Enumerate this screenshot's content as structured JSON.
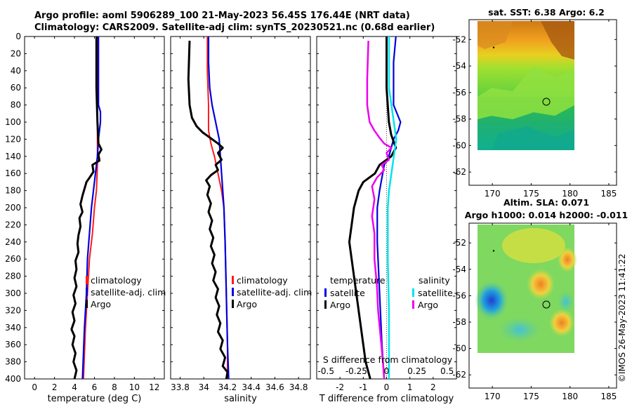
{
  "header": {
    "title_line1": "Argo profile: aoml 5906289_100 21-May-2023 56.45S 176.44E (NRT data)",
    "title_line2": "Climatology: CARS2009. Satellite-adj clim: synTS_20230521.nc (0.68d earlier)"
  },
  "footer": {
    "stamp": "©IMOS 26-May-2023 11:41:22"
  },
  "colors": {
    "climatology": "#ff1a1a",
    "satellite": "#0000dd",
    "argo": "#000000",
    "cyan": "#00e5ee",
    "magenta": "#ee00ee"
  },
  "depth_ticks": [
    0,
    20,
    40,
    60,
    80,
    100,
    120,
    140,
    160,
    180,
    200,
    220,
    240,
    260,
    280,
    300,
    320,
    340,
    360,
    380,
    400
  ],
  "chart_data": [
    {
      "id": "temperature",
      "type": "line",
      "xlabel": "temperature (deg C)",
      "ylabel": "",
      "xlim": [
        -1,
        13
      ],
      "ylim": [
        400,
        0
      ],
      "xticks": [
        0,
        2,
        4,
        6,
        8,
        10,
        12
      ],
      "legend": [
        "climatology",
        "satellite-adj. clim",
        "Argo"
      ],
      "series": [
        {
          "name": "climatology",
          "color": "#ff1a1a",
          "points": [
            [
              6.3,
              0
            ],
            [
              6.3,
              60
            ],
            [
              6.3,
              100
            ],
            [
              6.3,
              150
            ],
            [
              6.2,
              180
            ],
            [
              6.0,
              200
            ],
            [
              5.8,
              230
            ],
            [
              5.5,
              260
            ],
            [
              5.3,
              300
            ],
            [
              5.1,
              340
            ],
            [
              5.0,
              370
            ],
            [
              4.9,
              400
            ]
          ]
        },
        {
          "name": "satellite-adj. clim",
          "color": "#0000dd",
          "points": [
            [
              6.4,
              0
            ],
            [
              6.4,
              40
            ],
            [
              6.4,
              80
            ],
            [
              6.6,
              88
            ],
            [
              6.6,
              100
            ],
            [
              6.4,
              120
            ],
            [
              6.3,
              140
            ],
            [
              6.1,
              160
            ],
            [
              5.9,
              180
            ],
            [
              5.7,
              200
            ],
            [
              5.5,
              230
            ],
            [
              5.3,
              260
            ],
            [
              5.2,
              300
            ],
            [
              5.0,
              340
            ],
            [
              4.9,
              370
            ],
            [
              4.8,
              400
            ]
          ]
        },
        {
          "name": "Argo",
          "color": "#000000",
          "points": [
            [
              6.2,
              0
            ],
            [
              6.2,
              60
            ],
            [
              6.3,
              100
            ],
            [
              6.4,
              125
            ],
            [
              6.7,
              132
            ],
            [
              6.4,
              138
            ],
            [
              6.5,
              145
            ],
            [
              5.8,
              150
            ],
            [
              5.9,
              158
            ],
            [
              5.5,
              165
            ],
            [
              5.2,
              170
            ],
            [
              5.0,
              178
            ],
            [
              4.8,
              186
            ],
            [
              4.6,
              196
            ],
            [
              4.8,
              205
            ],
            [
              4.5,
              212
            ],
            [
              4.6,
              222
            ],
            [
              4.4,
              232
            ],
            [
              4.3,
              242
            ],
            [
              4.4,
              252
            ],
            [
              4.1,
              262
            ],
            [
              4.2,
              272
            ],
            [
              4.0,
              282
            ],
            [
              4.2,
              292
            ],
            [
              3.9,
              302
            ],
            [
              4.1,
              312
            ],
            [
              3.8,
              322
            ],
            [
              4.0,
              332
            ],
            [
              3.7,
              342
            ],
            [
              4.0,
              350
            ],
            [
              3.8,
              360
            ],
            [
              4.1,
              370
            ],
            [
              3.9,
              380
            ],
            [
              4.2,
              390
            ],
            [
              4.0,
              400
            ]
          ]
        }
      ]
    },
    {
      "id": "salinity",
      "type": "line",
      "xlabel": "salinity",
      "ylabel": "",
      "xlim": [
        33.72,
        34.9
      ],
      "ylim": [
        400,
        0
      ],
      "xticks": [
        33.8,
        34,
        34.2,
        34.4,
        34.6,
        34.8
      ],
      "xticklabels": [
        "33.8",
        "34",
        "34.2",
        "34.4",
        "34.6",
        "34.8"
      ],
      "legend": [
        "climatology",
        "satellite-adj. clim",
        "Argo"
      ],
      "series": [
        {
          "name": "climatology",
          "color": "#ff1a1a",
          "points": [
            [
              34.03,
              0
            ],
            [
              34.03,
              40
            ],
            [
              34.04,
              80
            ],
            [
              34.04,
              110
            ],
            [
              34.06,
              125
            ],
            [
              34.09,
              140
            ],
            [
              34.12,
              160
            ],
            [
              34.15,
              180
            ],
            [
              34.17,
              200
            ],
            [
              34.18,
              240
            ],
            [
              34.19,
              300
            ],
            [
              34.2,
              360
            ],
            [
              34.2,
              400
            ]
          ]
        },
        {
          "name": "satellite-adj. clim",
          "color": "#0000dd",
          "points": [
            [
              34.04,
              0
            ],
            [
              34.04,
              30
            ],
            [
              34.05,
              60
            ],
            [
              34.07,
              80
            ],
            [
              34.1,
              100
            ],
            [
              34.13,
              120
            ],
            [
              34.14,
              140
            ],
            [
              34.15,
              160
            ],
            [
              34.16,
              180
            ],
            [
              34.17,
              200
            ],
            [
              34.18,
              240
            ],
            [
              34.19,
              300
            ],
            [
              34.2,
              360
            ],
            [
              34.21,
              400
            ]
          ]
        },
        {
          "name": "Argo",
          "color": "#000000",
          "points": [
            [
              33.88,
              5
            ],
            [
              33.87,
              50
            ],
            [
              33.88,
              80
            ],
            [
              33.9,
              95
            ],
            [
              33.94,
              105
            ],
            [
              33.99,
              112
            ],
            [
              34.05,
              118
            ],
            [
              34.12,
              125
            ],
            [
              34.16,
              130
            ],
            [
              34.12,
              136
            ],
            [
              34.15,
              144
            ],
            [
              34.1,
              150
            ],
            [
              34.12,
              156
            ],
            [
              34.06,
              162
            ],
            [
              34.02,
              168
            ],
            [
              34.05,
              175
            ],
            [
              34.03,
              185
            ],
            [
              34.06,
              195
            ],
            [
              34.04,
              205
            ],
            [
              34.07,
              215
            ],
            [
              34.05,
              225
            ],
            [
              34.08,
              235
            ],
            [
              34.06,
              245
            ],
            [
              34.09,
              255
            ],
            [
              34.07,
              265
            ],
            [
              34.1,
              275
            ],
            [
              34.08,
              285
            ],
            [
              34.12,
              295
            ],
            [
              34.1,
              305
            ],
            [
              34.13,
              315
            ],
            [
              34.11,
              325
            ],
            [
              34.14,
              335
            ],
            [
              34.12,
              345
            ],
            [
              34.16,
              355
            ],
            [
              34.14,
              365
            ],
            [
              34.18,
              375
            ],
            [
              34.16,
              385
            ],
            [
              34.2,
              392
            ],
            [
              34.19,
              400
            ]
          ]
        }
      ]
    },
    {
      "id": "difference",
      "type": "line",
      "xlabel": "T difference from climatology",
      "xlabel_top": "S difference from climatology",
      "xlim": [
        -3,
        3
      ],
      "ylim": [
        400,
        0
      ],
      "xticks": [
        -2,
        -1,
        0,
        1,
        2
      ],
      "top_ticks": [
        -0.5,
        -0.25,
        0,
        0.25,
        0.5
      ],
      "top_ticklabels": [
        "-0.5",
        "-0.25",
        "0",
        "0.25",
        "0.5"
      ],
      "legend_left_title": "temperature",
      "legend_right_title": "salinity",
      "legend": [
        "satellite",
        "Argo"
      ],
      "series": [
        {
          "name": "T satellite",
          "color": "#0000dd",
          "points": [
            [
              0.4,
              0
            ],
            [
              0.3,
              30
            ],
            [
              0.3,
              60
            ],
            [
              0.3,
              80
            ],
            [
              0.6,
              100
            ],
            [
              0.5,
              110
            ],
            [
              0.3,
              120
            ],
            [
              0.1,
              140
            ],
            [
              -0.1,
              150
            ],
            [
              -0.2,
              165
            ],
            [
              -0.3,
              180
            ],
            [
              -0.4,
              200
            ],
            [
              -0.4,
              240
            ],
            [
              -0.3,
              300
            ],
            [
              -0.2,
              360
            ],
            [
              -0.1,
              400
            ]
          ]
        },
        {
          "name": "T Argo",
          "color": "#000000",
          "points": [
            [
              0,
              0
            ],
            [
              0,
              60
            ],
            [
              0.1,
              100
            ],
            [
              0.2,
              115
            ],
            [
              0.4,
              130
            ],
            [
              0.2,
              140
            ],
            [
              -0.3,
              150
            ],
            [
              -0.5,
              160
            ],
            [
              -1.0,
              170
            ],
            [
              -1.2,
              180
            ],
            [
              -1.3,
              190
            ],
            [
              -1.4,
              200
            ],
            [
              -1.5,
              220
            ],
            [
              -1.6,
              240
            ],
            [
              -1.5,
              260
            ],
            [
              -1.4,
              280
            ],
            [
              -1.3,
              300
            ],
            [
              -1.2,
              320
            ],
            [
              -1.1,
              340
            ],
            [
              -1.0,
              360
            ],
            [
              -0.9,
              380
            ],
            [
              -0.7,
              400
            ]
          ]
        },
        {
          "name": "S satellite",
          "color": "#00e5ee",
          "points": [
            [
              0.02,
              0
            ],
            [
              0.02,
              60
            ],
            [
              0.06,
              100
            ],
            [
              0.08,
              120
            ],
            [
              0.06,
              140
            ],
            [
              0.04,
              160
            ],
            [
              0.02,
              180
            ],
            [
              0.01,
              200
            ],
            [
              0.01,
              260
            ],
            [
              0.02,
              320
            ],
            [
              0.02,
              400
            ]
          ]
        },
        {
          "name": "S Argo",
          "color": "#ee00ee",
          "points": [
            [
              -0.15,
              5
            ],
            [
              -0.16,
              50
            ],
            [
              -0.16,
              80
            ],
            [
              -0.14,
              100
            ],
            [
              -0.1,
              110
            ],
            [
              -0.06,
              118
            ],
            [
              -0.02,
              125
            ],
            [
              0.04,
              130
            ],
            [
              0.0,
              136
            ],
            [
              0.02,
              144
            ],
            [
              -0.04,
              150
            ],
            [
              -0.02,
              156
            ],
            [
              -0.08,
              165
            ],
            [
              -0.12,
              175
            ],
            [
              -0.1,
              190
            ],
            [
              -0.12,
              210
            ],
            [
              -0.1,
              230
            ],
            [
              -0.1,
              260
            ],
            [
              -0.08,
              290
            ],
            [
              -0.07,
              320
            ],
            [
              -0.05,
              350
            ],
            [
              -0.03,
              380
            ],
            [
              -0.02,
              400
            ]
          ]
        }
      ]
    },
    {
      "id": "sst_map",
      "type": "heatmap",
      "title": "sat. SST: 6.38 Argo: 6.2",
      "xticks": [
        170,
        175,
        180,
        185
      ],
      "yticks": [
        -52,
        -54,
        -56,
        -58,
        -60,
        -62
      ],
      "xlim": [
        167,
        186
      ],
      "ylim": [
        -63,
        -50.5
      ],
      "data_extent": {
        "lon": [
          167,
          180
        ],
        "lat": [
          -60,
          -50.5
        ]
      },
      "argo_marker": {
        "lon": 176.44,
        "lat": -56.45
      }
    },
    {
      "id": "sla_map",
      "type": "heatmap",
      "title_line1": "Altim. SLA: 0.071",
      "title_line2": "Argo h1000: 0.014 h2000: -0.011",
      "xticks": [
        170,
        175,
        180,
        185
      ],
      "yticks": [
        -52,
        -54,
        -56,
        -58,
        -60,
        -62
      ],
      "xlim": [
        167,
        186
      ],
      "ylim": [
        -63,
        -50.5
      ],
      "data_extent": {
        "lon": [
          167,
          180
        ],
        "lat": [
          -60,
          -50.5
        ]
      },
      "argo_marker": {
        "lon": 176.44,
        "lat": -56.45
      }
    }
  ]
}
